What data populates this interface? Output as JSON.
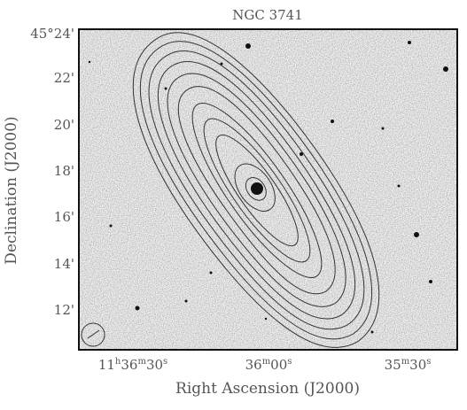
{
  "title": "NGC 3741",
  "x_axis": {
    "label": "Right Ascension (J2000)",
    "ticks": [
      [
        "11",
        "h",
        "36",
        "m",
        "30",
        "s"
      ],
      [
        "36",
        "m",
        "00",
        "s"
      ],
      [
        "35",
        "m",
        "30",
        "s"
      ]
    ]
  },
  "y_axis": {
    "label": "Declination (J2000)",
    "ticks": [
      "45°24'",
      "22'",
      "20'",
      "18'",
      "16'",
      "14'",
      "12'"
    ]
  }
}
